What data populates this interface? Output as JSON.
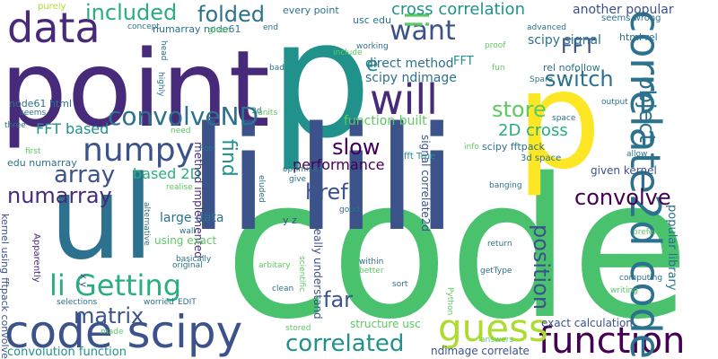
{
  "palette": {
    "dark_purple": "#440154",
    "purple": "#472a7a",
    "indigo": "#3b528b",
    "blue": "#2c728e",
    "teal": "#21918c",
    "green_teal": "#28ae80",
    "green": "#5ec962",
    "bright_green": "#49c16d",
    "lime": "#addc30",
    "yellow": "#fde725"
  },
  "words": [
    {
      "text": "code",
      "color": "#49c16d",
      "weight": 1.0
    },
    {
      "text": "p",
      "color": "#21918c",
      "weight": 0.95
    },
    {
      "text": "point",
      "color": "#472a7a",
      "weight": 0.9
    },
    {
      "text": "p",
      "color": "#fde725",
      "weight": 0.85
    },
    {
      "text": "ul",
      "color": "#2c728e",
      "weight": 0.85
    },
    {
      "text": "li",
      "color": "#3b528b",
      "weight": 0.8
    },
    {
      "text": "li",
      "color": "#3b528b",
      "weight": 0.8
    },
    {
      "text": "li",
      "color": "#3b528b",
      "weight": 0.8
    },
    {
      "text": "code scipy",
      "color": "#3b528b",
      "weight": 0.5
    },
    {
      "text": "function",
      "color": "#440154",
      "weight": 0.45
    },
    {
      "text": "correlate2d code",
      "color": "#2c728e",
      "weight": 0.45
    },
    {
      "text": "data",
      "color": "#472a7a",
      "weight": 0.45
    },
    {
      "text": "will",
      "color": "#472a7a",
      "weight": 0.4
    },
    {
      "text": "numpy",
      "color": "#3b528b",
      "weight": 0.4
    },
    {
      "text": "guess",
      "color": "#addc30",
      "weight": 0.35
    },
    {
      "text": "li Getting",
      "color": "#28ae80",
      "weight": 0.35
    },
    {
      "text": "want",
      "color": "#3b528b",
      "weight": 0.3
    },
    {
      "text": "convolveND",
      "color": "#2c728e",
      "weight": 0.3
    },
    {
      "text": "li",
      "color": "#5ec962",
      "weight": 0.3
    },
    {
      "text": "included",
      "color": "#28ae80",
      "weight": 0.3
    },
    {
      "text": "folded",
      "color": "#2c728e",
      "weight": 0.3
    },
    {
      "text": "correlated",
      "color": "#21918c",
      "weight": 0.28
    },
    {
      "text": "switch",
      "color": "#2c728e",
      "weight": 0.26
    },
    {
      "text": "object",
      "color": "#2c728e",
      "weight": 0.26
    },
    {
      "text": "position",
      "color": "#3b528b",
      "weight": 0.26
    },
    {
      "text": "array",
      "color": "#3b528b",
      "weight": 0.26
    },
    {
      "text": "matrix",
      "color": "#3b528b",
      "weight": 0.24
    },
    {
      "text": "numarray",
      "color": "#472a7a",
      "weight": 0.24
    },
    {
      "text": "convolve",
      "color": "#440154",
      "weight": 0.24
    },
    {
      "text": "store",
      "color": "#5ec962",
      "weight": 0.24
    },
    {
      "text": "slow",
      "color": "#440154",
      "weight": 0.24
    },
    {
      "text": "href",
      "color": "#3b528b",
      "weight": 0.24
    },
    {
      "text": "far",
      "color": "#3b528b",
      "weight": 0.24
    },
    {
      "text": "FFT",
      "color": "#3b528b",
      "weight": 0.22
    },
    {
      "text": "find",
      "color": "#21918c",
      "weight": 0.22
    },
    {
      "text": "e",
      "color": "#21918c",
      "weight": 0.22
    },
    {
      "text": "cross correlation",
      "color": "#21918c",
      "weight": 0.2
    },
    {
      "text": "performance",
      "color": "#440154",
      "weight": 0.18
    },
    {
      "text": "2D cross",
      "color": "#28ae80",
      "weight": 0.18
    },
    {
      "text": "FFT based",
      "color": "#21918c",
      "weight": 0.16
    },
    {
      "text": "based 2D",
      "color": "#28ae80",
      "weight": 0.16
    },
    {
      "text": "large data",
      "color": "#2c728e",
      "weight": 0.14
    },
    {
      "text": "another popular",
      "color": "#3b528b",
      "weight": 0.14
    },
    {
      "text": "scipy ndimage",
      "color": "#2c728e",
      "weight": 0.14
    },
    {
      "text": "direct method",
      "color": "#2c728e",
      "weight": 0.14
    },
    {
      "text": "scipy signal",
      "color": "#2c728e",
      "weight": 0.12
    },
    {
      "text": "function built",
      "color": "#5ec962",
      "weight": 0.12
    },
    {
      "text": "method implemented",
      "color": "#472a7a",
      "weight": 0.12
    },
    {
      "text": "using exact",
      "color": "#5ec962",
      "weight": 0.12
    },
    {
      "text": "popular library",
      "color": "#2c728e",
      "weight": 0.12
    },
    {
      "text": "convolution function",
      "color": "#21918c",
      "weight": 0.12
    },
    {
      "text": "given kernel",
      "color": "#3b528b",
      "weight": 0.12
    },
    {
      "text": "exact calculation",
      "color": "#3b528b",
      "weight": 0.12
    },
    {
      "text": "signal correlate2d",
      "color": "#3b528b",
      "weight": 0.12
    },
    {
      "text": "FFT",
      "color": "#21918c",
      "weight": 0.12
    },
    {
      "text": "ndimage correlate",
      "color": "#3b528b",
      "weight": 0.11
    },
    {
      "text": "structure usc",
      "color": "#5ec962",
      "weight": 0.11
    },
    {
      "text": "really understand",
      "color": "#3b528b",
      "weight": 0.11
    },
    {
      "text": "fftpack convolve",
      "color": "#3b528b",
      "weight": 0.1
    },
    {
      "text": "kernel using",
      "color": "#3b528b",
      "weight": 0.1
    },
    {
      "text": "node61 html",
      "color": "#2c728e",
      "weight": 0.1
    },
    {
      "text": "edu numarray",
      "color": "#2c728e",
      "weight": 0.1
    },
    {
      "text": "numarray node61",
      "color": "#2c728e",
      "weight": 0.1
    },
    {
      "text": "every point",
      "color": "#2c728e",
      "weight": 0.1
    },
    {
      "text": "usc edu",
      "color": "#2c728e",
      "weight": 0.1
    },
    {
      "text": "html rel",
      "color": "#2c728e",
      "weight": 0.1
    },
    {
      "text": "rel nofollow",
      "color": "#2c728e",
      "weight": 0.1
    },
    {
      "text": "scipy fftpack",
      "color": "#2c728e",
      "weight": 0.1
    },
    {
      "text": "seems wrong",
      "color": "#2c728e",
      "weight": 0.09
    },
    {
      "text": "3d space",
      "color": "#2c728e",
      "weight": 0.09
    },
    {
      "text": "fft True",
      "color": "#21918c",
      "weight": 0.09
    },
    {
      "text": "y z",
      "color": "#3b528b",
      "weight": 0.09
    },
    {
      "text": "x y",
      "color": "#3b528b",
      "weight": 0.08
    },
    {
      "text": "Apparently",
      "color": "#472a7a",
      "weight": 0.08
    },
    {
      "text": "purely",
      "color": "#addc30",
      "weight": 0.08
    },
    {
      "text": "concept",
      "color": "#2c728e",
      "weight": 0.08
    },
    {
      "text": "given",
      "color": "#5ec962",
      "weight": 0.08
    },
    {
      "text": "end",
      "color": "#2c728e",
      "weight": 0.08
    },
    {
      "text": "head",
      "color": "#2c728e",
      "weight": 0.07
    },
    {
      "text": "highly",
      "color": "#2c728e",
      "weight": 0.07
    },
    {
      "text": "working",
      "color": "#2c728e",
      "weight": 0.07
    },
    {
      "text": "include",
      "color": "#5ec962",
      "weight": 0.07
    },
    {
      "text": "proof",
      "color": "#5ec962",
      "weight": 0.07
    },
    {
      "text": "advanced",
      "color": "#2c728e",
      "weight": 0.07
    },
    {
      "text": "fun",
      "color": "#5ec962",
      "weight": 0.07
    },
    {
      "text": "Spare",
      "color": "#2c728e",
      "weight": 0.07
    },
    {
      "text": "bad",
      "color": "#2c728e",
      "weight": 0.07
    },
    {
      "text": "3d",
      "color": "#2c728e",
      "weight": 0.07
    },
    {
      "text": "units",
      "color": "#5ec962",
      "weight": 0.07
    },
    {
      "text": "seems",
      "color": "#2c728e",
      "weight": 0.07
    },
    {
      "text": "three",
      "color": "#2c728e",
      "weight": 0.07
    },
    {
      "text": "need",
      "color": "#5ec962",
      "weight": 0.07
    },
    {
      "text": "Foo",
      "color": "#2c728e",
      "weight": 0.07
    },
    {
      "text": "first",
      "color": "#5ec962",
      "weight": 0.07
    },
    {
      "text": "info",
      "color": "#5ec962",
      "weight": 0.07
    },
    {
      "text": "output",
      "color": "#2c728e",
      "weight": 0.07
    },
    {
      "text": "space",
      "color": "#2c728e",
      "weight": 0.07
    },
    {
      "text": "allow",
      "color": "#2c728e",
      "weight": 0.07
    },
    {
      "text": "optimised",
      "color": "#2c728e",
      "weight": 0.07
    },
    {
      "text": "give",
      "color": "#2c728e",
      "weight": 0.07
    },
    {
      "text": "realise",
      "color": "#5ec962",
      "weight": 0.07
    },
    {
      "text": "eluded",
      "color": "#2c728e",
      "weight": 0.07
    },
    {
      "text": "banging",
      "color": "#2c728e",
      "weight": 0.07
    },
    {
      "text": "alternative",
      "color": "#2c728e",
      "weight": 0.07
    },
    {
      "text": "wall",
      "color": "#2c728e",
      "weight": 0.07
    },
    {
      "text": "prefer",
      "color": "#5ec962",
      "weight": 0.07
    },
    {
      "text": "good",
      "color": "#2c728e",
      "weight": 0.07
    },
    {
      "text": "basically",
      "color": "#2c728e",
      "weight": 0.07
    },
    {
      "text": "original",
      "color": "#2c728e",
      "weight": 0.07
    },
    {
      "text": "arbitary",
      "color": "#5ec962",
      "weight": 0.07
    },
    {
      "text": "scientific",
      "color": "#5ec962",
      "weight": 0.07
    },
    {
      "text": "return",
      "color": "#2c728e",
      "weight": 0.07
    },
    {
      "text": "within",
      "color": "#2c728e",
      "weight": 0.07
    },
    {
      "text": "better",
      "color": "#5ec962",
      "weight": 0.07
    },
    {
      "text": "getType",
      "color": "#2c728e",
      "weight": 0.07
    },
    {
      "text": "computing",
      "color": "#2c728e",
      "weight": 0.07
    },
    {
      "text": "writing",
      "color": "#5ec962",
      "weight": 0.07
    },
    {
      "text": "selections",
      "color": "#2c728e",
      "weight": 0.07
    },
    {
      "text": "worried",
      "color": "#2c728e",
      "weight": 0.07
    },
    {
      "text": "EDIT",
      "color": "#2c728e",
      "weight": 0.07
    },
    {
      "text": "clean",
      "color": "#2c728e",
      "weight": 0.07
    },
    {
      "text": "sort",
      "color": "#2c728e",
      "weight": 0.07
    },
    {
      "text": "Python",
      "color": "#5ec962",
      "weight": 0.07
    },
    {
      "text": "made",
      "color": "#5ec962",
      "weight": 0.07
    },
    {
      "text": "stored",
      "color": "#5ec962",
      "weight": 0.07
    },
    {
      "text": "answers",
      "color": "#5ec962",
      "weight": 0.07
    }
  ]
}
